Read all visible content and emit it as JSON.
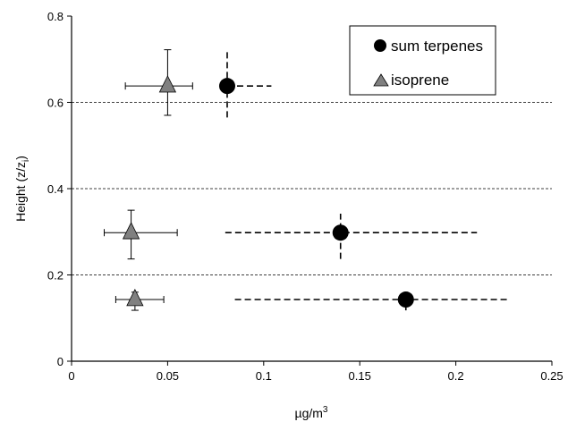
{
  "chart_data": {
    "type": "scatter",
    "title": "",
    "xlabel": "µg/m",
    "xlabel_superscript": "3",
    "ylabel": "Height (z/z",
    "ylabel_subscript": "i",
    "ylabel_suffix": ")",
    "xlim": [
      0,
      0.25
    ],
    "ylim": [
      0,
      0.8
    ],
    "x_ticks": [
      {
        "value": 0,
        "label": "0"
      },
      {
        "value": 0.05,
        "label": "0.05"
      },
      {
        "value": 0.1,
        "label": "0.1"
      },
      {
        "value": 0.15,
        "label": "0.15"
      },
      {
        "value": 0.2,
        "label": "0.2"
      },
      {
        "value": 0.25,
        "label": "0.25"
      }
    ],
    "y_ticks": [
      {
        "value": 0,
        "label": "0"
      },
      {
        "value": 0.2,
        "label": "0.2"
      },
      {
        "value": 0.4,
        "label": "0.4"
      },
      {
        "value": 0.6,
        "label": "0.6"
      },
      {
        "value": 0.8,
        "label": "0.8"
      }
    ],
    "grid": "horizontal-dashed",
    "legend_position": "top-right",
    "series": [
      {
        "name": "sum terpenes",
        "marker": "circle",
        "color": "#000000",
        "errorbar_style": "dashed",
        "points": [
          {
            "x": 0.081,
            "y": 0.638,
            "xerr_low": 0.081,
            "xerr_high": 0.104,
            "yerr_low": 0.565,
            "yerr_high": 0.722
          },
          {
            "x": 0.14,
            "y": 0.298,
            "xerr_low": 0.08,
            "xerr_high": 0.211,
            "yerr_low": 0.237,
            "yerr_high": 0.342
          },
          {
            "x": 0.174,
            "y": 0.143,
            "xerr_low": 0.085,
            "xerr_high": 0.228,
            "yerr_low": 0.118,
            "yerr_high": 0.143
          }
        ]
      },
      {
        "name": "isoprene",
        "marker": "triangle",
        "color": "#808080",
        "errorbar_style": "solid",
        "points": [
          {
            "x": 0.05,
            "y": 0.638,
            "xerr_low": 0.028,
            "xerr_high": 0.063,
            "yerr_low": 0.57,
            "yerr_high": 0.722
          },
          {
            "x": 0.031,
            "y": 0.298,
            "xerr_low": 0.017,
            "xerr_high": 0.055,
            "yerr_low": 0.237,
            "yerr_high": 0.35
          },
          {
            "x": 0.033,
            "y": 0.143,
            "xerr_low": 0.023,
            "xerr_high": 0.048,
            "yerr_low": 0.118,
            "yerr_high": 0.16
          }
        ]
      }
    ]
  }
}
